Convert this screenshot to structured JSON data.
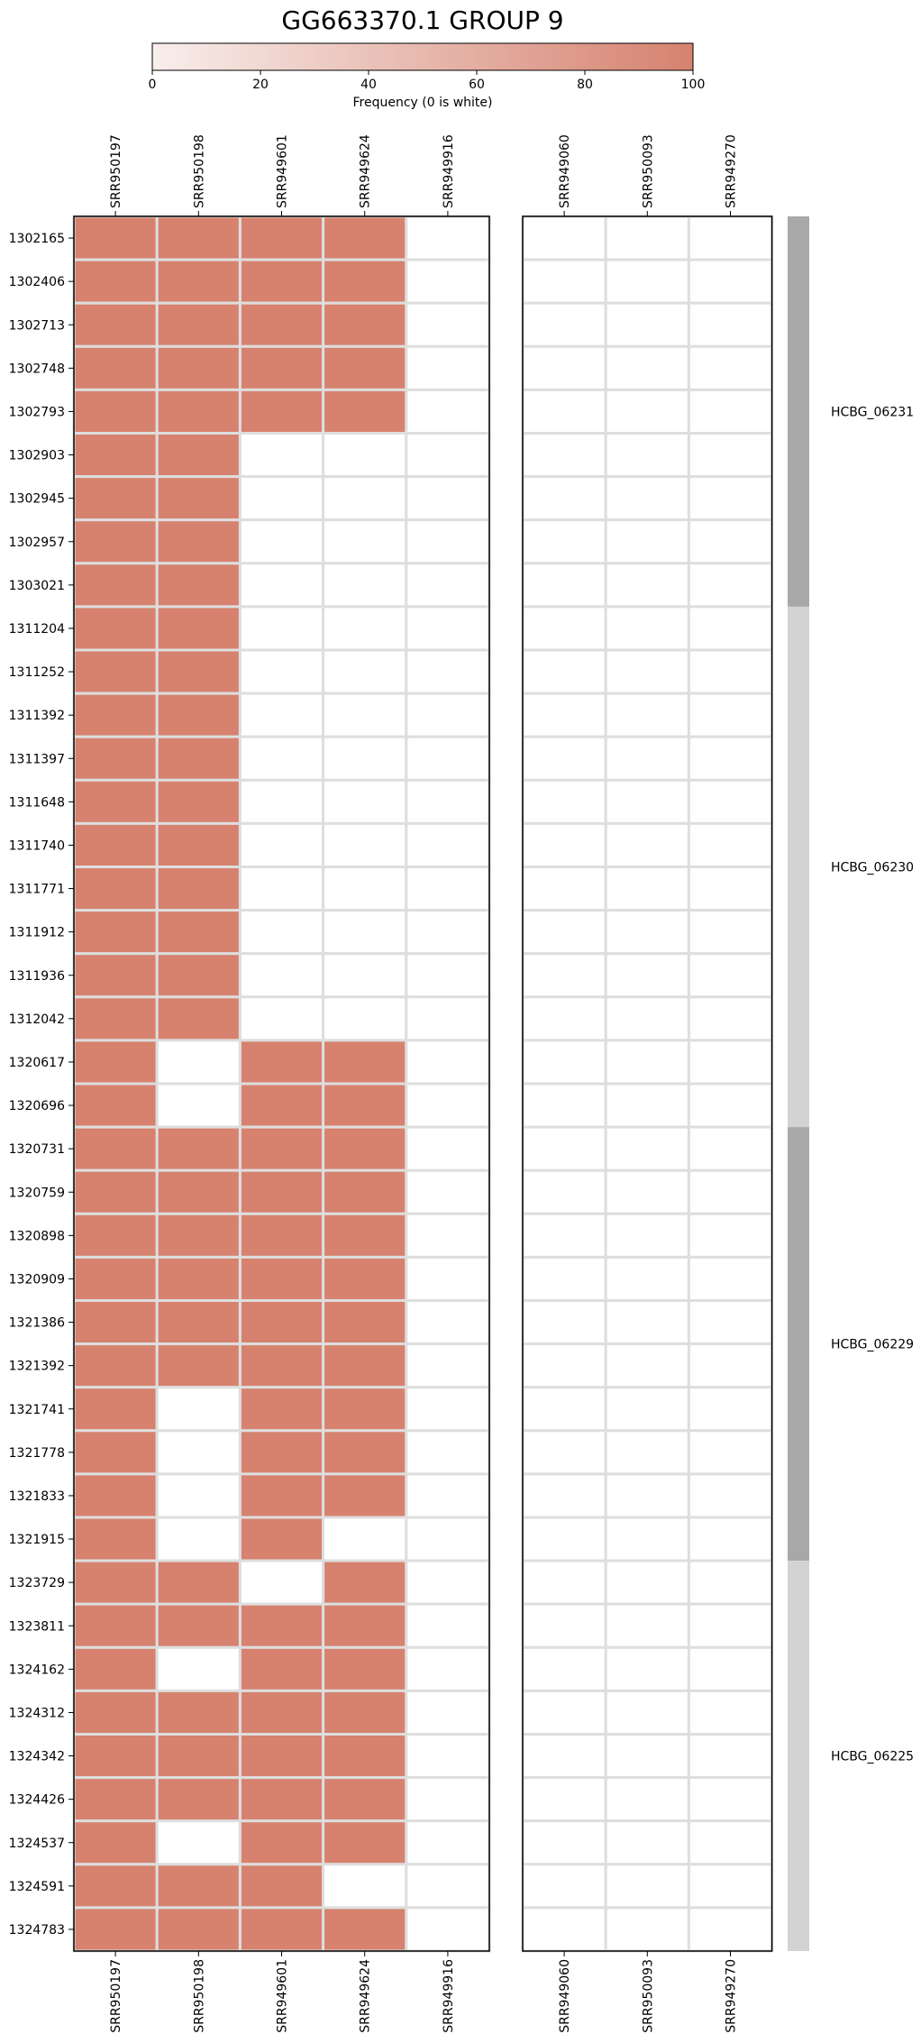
{
  "chart_data": {
    "type": "heatmap",
    "title": "GG663370.1 GROUP 9",
    "colorbar": {
      "label": "Frequency (0 is white)",
      "ticks": [
        0,
        20,
        40,
        60,
        80,
        100
      ],
      "range": [
        0,
        100
      ],
      "color_low": "#f8eeec",
      "color_high": "#d6826f"
    },
    "colors": {
      "filled": "#d6826f",
      "empty": "#ffffff",
      "grid": "#dedede",
      "group_dark": "#a8a8a8",
      "group_light": "#d3d3d3"
    },
    "panels": [
      {
        "columns": [
          "SRR950197",
          "SRR950198",
          "SRR949601",
          "SRR949624",
          "SRR949916"
        ]
      },
      {
        "columns": [
          "SRR949060",
          "SRR950093",
          "SRR949270"
        ]
      }
    ],
    "rows": [
      "1302165",
      "1302406",
      "1302713",
      "1302748",
      "1302793",
      "1302903",
      "1302945",
      "1302957",
      "1303021",
      "1311204",
      "1311252",
      "1311392",
      "1311397",
      "1311648",
      "1311740",
      "1311771",
      "1311912",
      "1311936",
      "1312042",
      "1320617",
      "1320696",
      "1320731",
      "1320759",
      "1320898",
      "1320909",
      "1321386",
      "1321392",
      "1321741",
      "1321778",
      "1321833",
      "1321915",
      "1323729",
      "1323811",
      "1324162",
      "1324312",
      "1324342",
      "1324426",
      "1324537",
      "1324591",
      "1324783"
    ],
    "values_panel1": [
      [
        100,
        100,
        100,
        100,
        0
      ],
      [
        100,
        100,
        100,
        100,
        0
      ],
      [
        100,
        100,
        100,
        100,
        0
      ],
      [
        100,
        100,
        100,
        100,
        0
      ],
      [
        100,
        100,
        100,
        100,
        0
      ],
      [
        100,
        100,
        0,
        0,
        0
      ],
      [
        100,
        100,
        0,
        0,
        0
      ],
      [
        100,
        100,
        0,
        0,
        0
      ],
      [
        100,
        100,
        0,
        0,
        0
      ],
      [
        100,
        100,
        0,
        0,
        0
      ],
      [
        100,
        100,
        0,
        0,
        0
      ],
      [
        100,
        100,
        0,
        0,
        0
      ],
      [
        100,
        100,
        0,
        0,
        0
      ],
      [
        100,
        100,
        0,
        0,
        0
      ],
      [
        100,
        100,
        0,
        0,
        0
      ],
      [
        100,
        100,
        0,
        0,
        0
      ],
      [
        100,
        100,
        0,
        0,
        0
      ],
      [
        100,
        100,
        0,
        0,
        0
      ],
      [
        100,
        100,
        0,
        0,
        0
      ],
      [
        100,
        0,
        100,
        100,
        0
      ],
      [
        100,
        0,
        100,
        100,
        0
      ],
      [
        100,
        100,
        100,
        100,
        0
      ],
      [
        100,
        100,
        100,
        100,
        0
      ],
      [
        100,
        100,
        100,
        100,
        0
      ],
      [
        100,
        100,
        100,
        100,
        0
      ],
      [
        100,
        100,
        100,
        100,
        0
      ],
      [
        100,
        100,
        100,
        100,
        0
      ],
      [
        100,
        0,
        100,
        100,
        0
      ],
      [
        100,
        0,
        100,
        100,
        0
      ],
      [
        100,
        0,
        100,
        100,
        0
      ],
      [
        100,
        0,
        100,
        0,
        0
      ],
      [
        100,
        100,
        0,
        100,
        0
      ],
      [
        100,
        100,
        100,
        100,
        0
      ],
      [
        100,
        0,
        100,
        100,
        0
      ],
      [
        100,
        100,
        100,
        100,
        0
      ],
      [
        100,
        100,
        100,
        100,
        0
      ],
      [
        100,
        100,
        100,
        100,
        0
      ],
      [
        100,
        0,
        100,
        100,
        0
      ],
      [
        100,
        100,
        100,
        0,
        0
      ],
      [
        100,
        100,
        100,
        100,
        0
      ]
    ],
    "values_panel2": "all 0",
    "groups": [
      {
        "label": "HCBG_06231",
        "start_row": 0,
        "end_row": 8,
        "shade": "dark"
      },
      {
        "label": "HCBG_06230",
        "start_row": 9,
        "end_row": 20,
        "shade": "light"
      },
      {
        "label": "HCBG_06229",
        "start_row": 21,
        "end_row": 30,
        "shade": "dark"
      },
      {
        "label": "HCBG_06225",
        "start_row": 31,
        "end_row": 39,
        "shade": "light"
      }
    ]
  }
}
